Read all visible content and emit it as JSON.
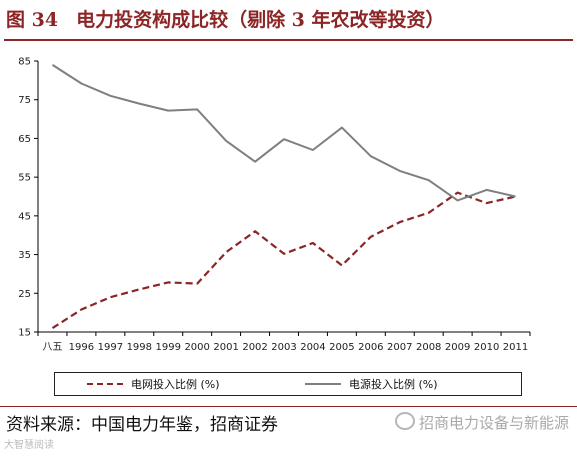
{
  "figure": {
    "number": "图 34",
    "title": "电力投资构成比较（剔除 3 年农改等投资）"
  },
  "source_text": "资料来源：中国电力年鉴，招商证券",
  "watermark_text": "招商电力设备与新能源",
  "corner_mark_text": "大智慧阅读",
  "chart_data": {
    "type": "line",
    "title": "",
    "xlabel": "",
    "ylabel": "",
    "categories": [
      "八五",
      "1996",
      "1997",
      "1998",
      "1999",
      "2000",
      "2001",
      "2002",
      "2003",
      "2004",
      "2005",
      "2006",
      "2007",
      "2008",
      "2009",
      "2010",
      "2011"
    ],
    "ylim": [
      15,
      85
    ],
    "yticks": [
      15,
      25,
      35,
      45,
      55,
      65,
      75,
      85
    ],
    "grid": false,
    "legend_position": "bottom",
    "series": [
      {
        "name": "电网投入比例 (%)",
        "color": "#8c2526",
        "style": "dashed",
        "values": [
          16.0,
          20.8,
          24.0,
          26.0,
          27.8,
          27.5,
          35.6,
          41.0,
          35.2,
          38.0,
          32.2,
          39.6,
          43.4,
          45.8,
          51.0,
          48.3,
          50.0
        ]
      },
      {
        "name": "电源投入比例 (%)",
        "color": "#7f7f7f",
        "style": "solid",
        "values": [
          84.0,
          79.2,
          76.0,
          74.0,
          72.2,
          72.5,
          64.4,
          59.0,
          64.8,
          62.0,
          67.8,
          60.4,
          56.6,
          54.2,
          49.0,
          51.7,
          50.0
        ]
      }
    ]
  }
}
